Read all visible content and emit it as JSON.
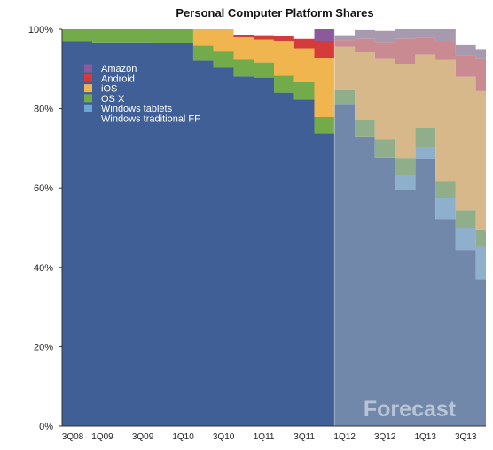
{
  "chart_data": {
    "type": "area",
    "stacked": true,
    "normalized": true,
    "title": "Personal Computer Platform Shares",
    "xlabel": "",
    "ylabel": "",
    "ylim": [
      0,
      100
    ],
    "y_tick_labels": [
      "0%",
      "20%",
      "40%",
      "60%",
      "80%",
      "100%"
    ],
    "y_tick_values": [
      0,
      20,
      40,
      60,
      80,
      100
    ],
    "x": [
      "3Q08",
      "4Q08",
      "1Q09",
      "2Q09",
      "3Q09",
      "4Q09",
      "1Q10",
      "2Q10",
      "3Q10",
      "4Q10",
      "1Q11",
      "2Q11",
      "3Q11",
      "4Q11",
      "1Q12",
      "2Q12",
      "3Q12",
      "4Q12",
      "1Q13",
      "2Q13",
      "3Q13",
      "4Q13"
    ],
    "x_tick_labels": [
      "3Q08",
      "1Q09",
      "3Q09",
      "1Q10",
      "3Q10",
      "1Q11",
      "3Q11",
      "1Q12",
      "3Q12",
      "1Q13",
      "3Q13"
    ],
    "forecast_start": "1Q12",
    "watermark": "Forecast",
    "legend_position": "top-left",
    "series": [
      {
        "name": "Windows traditional FF",
        "color": "#3f5f96",
        "forecast_color": "#7188aa",
        "values": [
          97.0,
          97.0,
          96.7,
          96.7,
          96.7,
          96.6,
          96.6,
          92.1,
          90.3,
          88.1,
          87.8,
          84.0,
          82.3,
          73.8,
          81.2,
          72.8,
          67.7,
          59.6,
          67.2,
          52.2,
          44.4,
          37.0
        ]
      },
      {
        "name": "Windows tablets",
        "color": "#6aa8d6",
        "forecast_color": "#8fb0cd",
        "values": [
          0,
          0,
          0,
          0,
          0,
          0,
          0,
          0,
          0,
          0,
          0,
          0,
          0,
          0,
          0,
          0,
          0,
          3.6,
          3.1,
          5.3,
          5.6,
          8.2
        ]
      },
      {
        "name": "OS X",
        "color": "#74ab4a",
        "forecast_color": "#90ae8a",
        "values": [
          3.0,
          3.0,
          3.3,
          3.3,
          3.3,
          3.4,
          3.4,
          3.8,
          4.1,
          4.2,
          3.8,
          4.3,
          4.3,
          4.1,
          3.4,
          4.3,
          4.5,
          4.4,
          4.7,
          4.3,
          4.4,
          4.2
        ]
      },
      {
        "name": "iOS",
        "color": "#f0b54f",
        "forecast_color": "#d6b88a",
        "values": [
          0,
          0,
          0,
          0,
          0,
          0,
          0,
          4.1,
          5.6,
          5.7,
          5.8,
          8.8,
          8.6,
          14.9,
          11.0,
          17.1,
          20.3,
          23.7,
          18.6,
          30.5,
          33.6,
          35.0
        ]
      },
      {
        "name": "Android",
        "color": "#d63b3b",
        "forecast_color": "#c98a91",
        "values": [
          0,
          0,
          0,
          0,
          0,
          0,
          0,
          0,
          0,
          0.5,
          0.9,
          1.1,
          2.4,
          4.3,
          1.7,
          3.4,
          4.3,
          6.3,
          4.3,
          4.7,
          5.5,
          8.1
        ]
      },
      {
        "name": "Amazon",
        "color": "#8a5a9a",
        "forecast_color": "#a89aae",
        "values": [
          0,
          0,
          0,
          0,
          0,
          0,
          0,
          0,
          0,
          0,
          0,
          0,
          0,
          2.9,
          1.0,
          2.2,
          2.8,
          2.4,
          2.1,
          3.0,
          2.5,
          2.5
        ]
      }
    ],
    "legend_order": [
      "Amazon",
      "Android",
      "iOS",
      "OS X",
      "Windows tablets",
      "Windows traditional FF"
    ]
  }
}
